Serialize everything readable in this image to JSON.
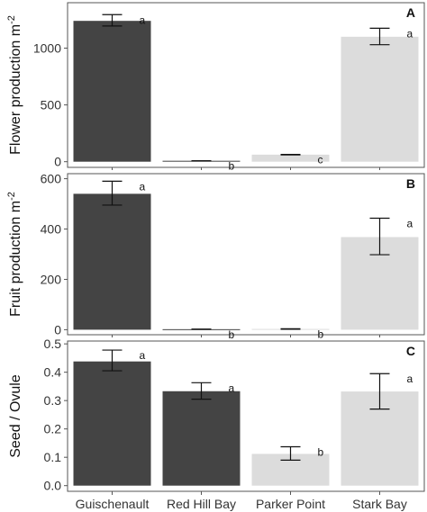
{
  "chart_data": {
    "type": "bar",
    "categories": [
      "Guischenault",
      "Red Hill Bay",
      "Parker Point",
      "Stark Bay"
    ],
    "colors": [
      "#444444",
      "#444444",
      "#dcdcdc",
      "#dcdcdc"
    ],
    "panels": [
      {
        "letter": "A",
        "ylabel": "Flower production m",
        "ylabel_sup": "-2",
        "ylim": [
          -50,
          1400
        ],
        "yticks": [
          0,
          500,
          1000
        ],
        "values": [
          1240,
          8,
          62,
          1100
        ],
        "err_low": [
          1195,
          8,
          60,
          1030
        ],
        "err_high": [
          1295,
          8,
          64,
          1175
        ],
        "letters": [
          "a",
          "b",
          "c",
          "a"
        ]
      },
      {
        "letter": "B",
        "ylabel": "Fruit production m",
        "ylabel_sup": "-2",
        "ylim": [
          -20,
          620
        ],
        "yticks": [
          0,
          200,
          400,
          600
        ],
        "values": [
          540,
          2,
          3,
          368
        ],
        "err_low": [
          495,
          2,
          2,
          298
        ],
        "err_high": [
          590,
          2,
          4,
          443
        ],
        "letters": [
          "a",
          "b",
          "b",
          "a"
        ]
      },
      {
        "letter": "C",
        "ylabel": "Seed / Ovule",
        "ylabel_sup": "",
        "ylim": [
          -0.02,
          0.51
        ],
        "yticks": [
          0.0,
          0.1,
          0.2,
          0.3,
          0.4,
          0.5
        ],
        "ytick_labels": [
          "0.0",
          "0.1",
          "0.2",
          "0.3",
          "0.4",
          "0.5"
        ],
        "values": [
          0.438,
          0.333,
          0.112,
          0.332
        ],
        "err_low": [
          0.405,
          0.305,
          0.09,
          0.27
        ],
        "err_high": [
          0.478,
          0.363,
          0.137,
          0.395
        ],
        "letters": [
          "a",
          "a",
          "b",
          "a"
        ]
      }
    ]
  }
}
